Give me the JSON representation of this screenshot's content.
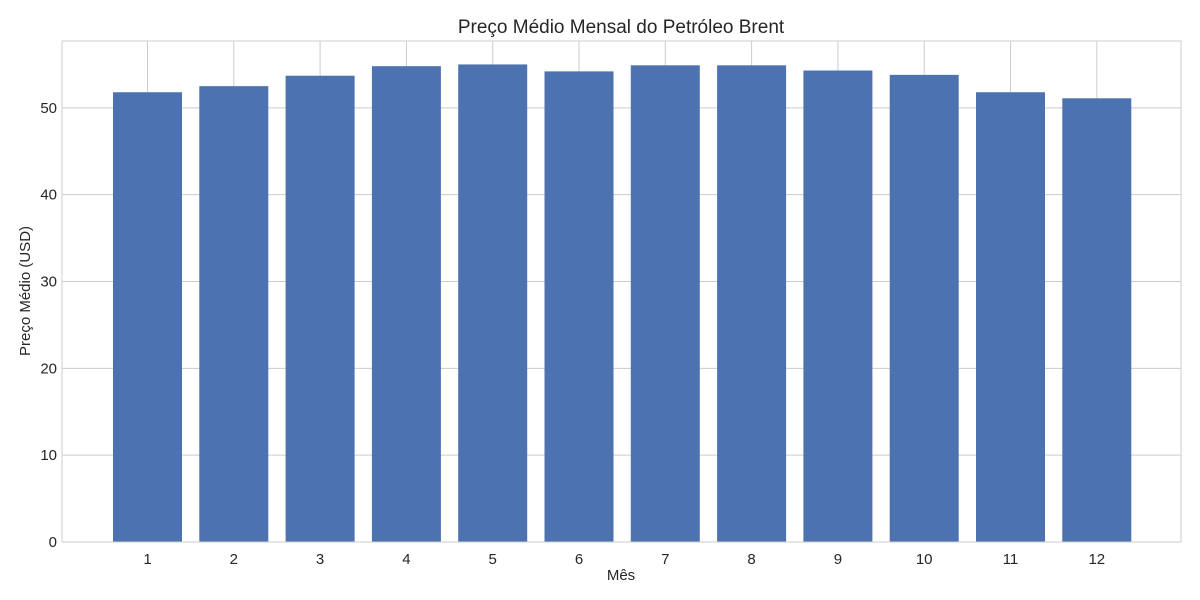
{
  "chart_data": {
    "type": "bar",
    "title": "Preço Médio Mensal do Petróleo Brent",
    "xlabel": "Mês",
    "ylabel": "Preço Médio (USD)",
    "categories": [
      "1",
      "2",
      "3",
      "4",
      "5",
      "6",
      "7",
      "8",
      "9",
      "10",
      "11",
      "12"
    ],
    "values": [
      51.8,
      52.5,
      53.7,
      54.8,
      55.0,
      54.2,
      54.9,
      54.9,
      54.3,
      53.8,
      51.8,
      51.1
    ],
    "ylim": [
      0,
      57.7
    ],
    "yticks": [
      0,
      10,
      20,
      30,
      40,
      50
    ],
    "grid": true,
    "bar_color": "#4c72b0"
  }
}
